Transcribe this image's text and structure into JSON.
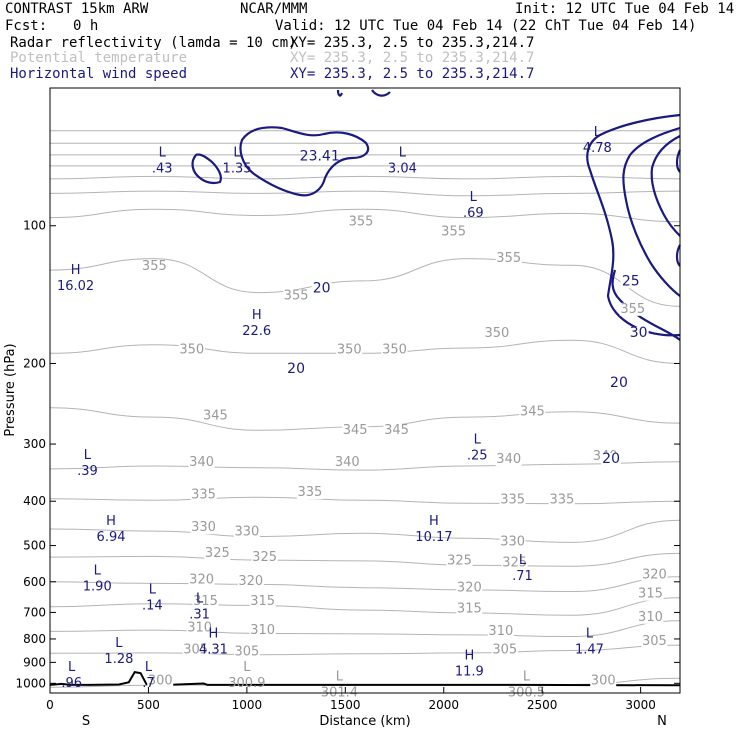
{
  "header": {
    "model": "CONTRAST 15km ARW",
    "center": "NCAR/MMM",
    "init": "Init: 12 UTC Tue 04 Feb 14",
    "fcst_label": "Fcst:",
    "fcst_value": "0 h",
    "valid": "Valid: 12 UTC Tue 04 Feb 14 (22 ChT Tue 04 Feb 14)"
  },
  "legend": [
    {
      "name": "Radar reflectivity (lamda = 10 cm)",
      "xy": "XY= 235.3,  2.5 to 235.3,214.7",
      "color": "#000000"
    },
    {
      "name": "Potential temperature",
      "xy": "XY= 235.3,  2.5 to 235.3,214.7",
      "color": "#b4b4b4"
    },
    {
      "name": "Horizontal wind speed",
      "xy": "XY= 235.3,  2.5 to 235.3,214.7",
      "color": "#1a1a80"
    }
  ],
  "chart_data": {
    "type": "contour",
    "xlabel": "Distance (km)",
    "ylabel": "Pressure (hPa)",
    "xlim": [
      0,
      3200
    ],
    "ylim": [
      1050,
      50
    ],
    "y_scale": "log",
    "x_ticks": [
      0,
      500,
      1000,
      1500,
      2000,
      2500,
      3000
    ],
    "y_ticks": [
      100,
      200,
      300,
      400,
      500,
      600,
      700,
      800,
      900,
      1000
    ],
    "x_end_labels": {
      "left": "S",
      "right": "N"
    },
    "theta_labels": [
      {
        "text": "355",
        "x": 530,
        "p": 125
      },
      {
        "text": "355",
        "x": 1250,
        "p": 145
      },
      {
        "text": "355",
        "x": 1580,
        "p": 100
      },
      {
        "text": "355",
        "x": 2050,
        "p": 105
      },
      {
        "text": "355",
        "x": 2330,
        "p": 120
      },
      {
        "text": "355",
        "x": 2960,
        "p": 155
      },
      {
        "text": "350",
        "x": 720,
        "p": 190
      },
      {
        "text": "350",
        "x": 1520,
        "p": 190
      },
      {
        "text": "350",
        "x": 1750,
        "p": 190
      },
      {
        "text": "350",
        "x": 2270,
        "p": 175
      },
      {
        "text": "345",
        "x": 840,
        "p": 265
      },
      {
        "text": "345",
        "x": 1550,
        "p": 285
      },
      {
        "text": "345",
        "x": 1760,
        "p": 285
      },
      {
        "text": "345",
        "x": 2450,
        "p": 260
      },
      {
        "text": "340",
        "x": 770,
        "p": 335
      },
      {
        "text": "340",
        "x": 1510,
        "p": 335
      },
      {
        "text": "340",
        "x": 2330,
        "p": 330
      },
      {
        "text": "340",
        "x": 2820,
        "p": 325
      },
      {
        "text": "335",
        "x": 780,
        "p": 395
      },
      {
        "text": "335",
        "x": 1320,
        "p": 390
      },
      {
        "text": "335",
        "x": 2350,
        "p": 405
      },
      {
        "text": "335",
        "x": 2600,
        "p": 405
      },
      {
        "text": "330",
        "x": 780,
        "p": 465
      },
      {
        "text": "330",
        "x": 1000,
        "p": 475
      },
      {
        "text": "330",
        "x": 2350,
        "p": 500
      },
      {
        "text": "325",
        "x": 850,
        "p": 530
      },
      {
        "text": "325",
        "x": 1090,
        "p": 540
      },
      {
        "text": "325",
        "x": 2080,
        "p": 550
      },
      {
        "text": "325",
        "x": 2360,
        "p": 555
      },
      {
        "text": "320",
        "x": 770,
        "p": 605
      },
      {
        "text": "320",
        "x": 1020,
        "p": 610
      },
      {
        "text": "320",
        "x": 2130,
        "p": 630
      },
      {
        "text": "320",
        "x": 3070,
        "p": 590
      },
      {
        "text": "315",
        "x": 790,
        "p": 675
      },
      {
        "text": "315",
        "x": 1080,
        "p": 675
      },
      {
        "text": "315",
        "x": 2130,
        "p": 700
      },
      {
        "text": "315",
        "x": 3050,
        "p": 650
      },
      {
        "text": "310",
        "x": 760,
        "p": 770
      },
      {
        "text": "310",
        "x": 1080,
        "p": 780
      },
      {
        "text": "310",
        "x": 2290,
        "p": 785
      },
      {
        "text": "310",
        "x": 3050,
        "p": 730
      },
      {
        "text": "305",
        "x": 740,
        "p": 860
      },
      {
        "text": "305",
        "x": 1000,
        "p": 870
      },
      {
        "text": "305",
        "x": 2310,
        "p": 860
      },
      {
        "text": "305",
        "x": 3070,
        "p": 825
      },
      {
        "text": "300",
        "x": 560,
        "p": 1005
      },
      {
        "text": "300",
        "x": 2810,
        "p": 1005
      }
    ],
    "wind_labels": [
      {
        "text": "20",
        "x": 1380,
        "p": 140
      },
      {
        "text": "20",
        "x": 1250,
        "p": 210
      },
      {
        "text": "25",
        "x": 2950,
        "p": 135
      },
      {
        "text": "30",
        "x": 2990,
        "p": 175
      },
      {
        "text": "20",
        "x": 2890,
        "p": 225
      },
      {
        "text": "20",
        "x": 2850,
        "p": 330
      },
      {
        "text": "23.41",
        "x": 1370,
        "p": 72
      }
    ],
    "extrema": [
      {
        "kind": "L",
        "value": ".43",
        "x": 570,
        "p": 72
      },
      {
        "kind": "L",
        "value": "1.35",
        "x": 950,
        "p": 72
      },
      {
        "kind": "L",
        "value": "3.04",
        "x": 1790,
        "p": 72
      },
      {
        "kind": "L",
        "value": ".69",
        "x": 2150,
        "p": 90
      },
      {
        "kind": "L",
        "value": "4.78",
        "x": 2780,
        "p": 65
      },
      {
        "kind": "H",
        "value": "16.02",
        "x": 130,
        "p": 130
      },
      {
        "kind": "H",
        "value": "22.6",
        "x": 1050,
        "p": 163
      },
      {
        "kind": "L",
        "value": ".39",
        "x": 190,
        "p": 330
      },
      {
        "kind": "L",
        "value": ".25",
        "x": 2170,
        "p": 305
      },
      {
        "kind": "H",
        "value": "6.94",
        "x": 310,
        "p": 460
      },
      {
        "kind": "H",
        "value": "10.17",
        "x": 1950,
        "p": 460
      },
      {
        "kind": "L",
        "value": ".71",
        "x": 2400,
        "p": 560
      },
      {
        "kind": "L",
        "value": "1.90",
        "x": 240,
        "p": 590
      },
      {
        "kind": "L",
        "value": ".14",
        "x": 520,
        "p": 650
      },
      {
        "kind": "L",
        "value": ".31",
        "x": 760,
        "p": 680
      },
      {
        "kind": "H",
        "value": "4.31",
        "x": 830,
        "p": 810
      },
      {
        "kind": "L",
        "value": "1.28",
        "x": 350,
        "p": 850
      },
      {
        "kind": "L",
        "value": "1.47",
        "x": 2740,
        "p": 810
      },
      {
        "kind": "H",
        "value": "11.9",
        "x": 2130,
        "p": 905
      },
      {
        "kind": "L",
        "value": ".96",
        "x": 110,
        "p": 960
      },
      {
        "kind": "L",
        "value": ".7",
        "x": 500,
        "p": 960
      },
      {
        "kind": "L",
        "value": "300.9",
        "x": 1000,
        "p": 960
      },
      {
        "kind": "L",
        "value": "301.4",
        "x": 1470,
        "p": 1005
      },
      {
        "kind": "L",
        "value": "300.5",
        "x": 2420,
        "p": 1005
      }
    ],
    "theta_lines": [
      {
        "p": [
          62,
          62,
          62,
          62,
          62,
          62,
          62
        ]
      },
      {
        "p": [
          66,
          66,
          66,
          66,
          66,
          66,
          66
        ]
      },
      {
        "p": [
          70,
          70,
          70,
          70,
          70,
          70,
          70
        ]
      },
      {
        "p": [
          74,
          74,
          74,
          74,
          74,
          74,
          74
        ]
      },
      {
        "p": [
          79,
          78,
          79,
          78,
          79,
          78,
          79
        ]
      },
      {
        "p": [
          85,
          84,
          85,
          84,
          86,
          85,
          84
        ]
      },
      {
        "p": [
          96,
          92,
          95,
          92,
          96,
          94,
          98
        ]
      },
      {
        "p": [
          125,
          118,
          140,
          132,
          118,
          122,
          150
        ]
      },
      {
        "p": [
          190,
          182,
          190,
          190,
          185,
          178,
          200
        ]
      },
      {
        "p": [
          250,
          262,
          280,
          275,
          262,
          255,
          270
        ]
      },
      {
        "p": [
          340,
          335,
          338,
          342,
          335,
          332,
          328
        ]
      },
      {
        "p": [
          395,
          398,
          392,
          398,
          404,
          405,
          400
        ]
      },
      {
        "p": [
          460,
          465,
          478,
          470,
          482,
          492,
          440
        ]
      },
      {
        "p": [
          530,
          528,
          538,
          540,
          552,
          555,
          520
        ]
      },
      {
        "p": [
          600,
          605,
          608,
          618,
          625,
          630,
          585
        ]
      },
      {
        "p": [
          680,
          670,
          676,
          692,
          702,
          710,
          650
        ]
      },
      {
        "p": [
          770,
          765,
          778,
          780,
          784,
          790,
          730
        ]
      },
      {
        "p": [
          860,
          858,
          866,
          862,
          858,
          848,
          825
        ]
      },
      {
        "p": [
          1020,
          1010,
          1008,
          1008,
          1006,
          1006,
          975
        ]
      }
    ],
    "theta_x": [
      0,
      530,
      1060,
      1590,
      2120,
      2650,
      3200
    ],
    "terrain_p": [
      [
        0,
        1008
      ],
      [
        60,
        1003
      ],
      [
        100,
        1007
      ],
      [
        200,
        1008
      ],
      [
        350,
        1006
      ],
      [
        400,
        995
      ],
      [
        430,
        945
      ],
      [
        460,
        950
      ],
      [
        490,
        1005
      ],
      [
        600,
        1008
      ],
      [
        780,
        1001
      ],
      [
        800,
        1008
      ],
      [
        1500,
        1008
      ],
      [
        2400,
        1008
      ],
      [
        3200,
        1010
      ]
    ]
  }
}
